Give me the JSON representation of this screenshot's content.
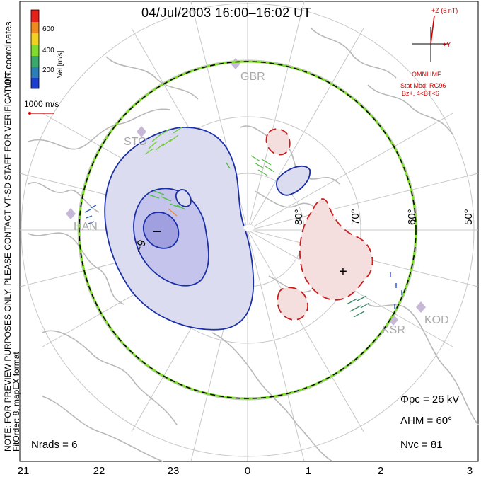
{
  "title": "04/Jul/2003 16:00–16:02 UT",
  "colorbar": {
    "label": "Vel [m/s]",
    "ticks": [
      "600",
      "400",
      "200"
    ],
    "colors": [
      "#e8201a",
      "#f08a1c",
      "#f2d21e",
      "#7fdc2a",
      "#3aa86a",
      "#2a7fb8",
      "#1a3fd0"
    ]
  },
  "coord_label": "MLT coordinates",
  "scale_vector": "1000 m/s",
  "imf": {
    "axis_z": "+Z (5 nT)",
    "axis_y": "+Y",
    "source": "OMNI IMF",
    "stat_mod": "Stat Mod: RG96",
    "condition": "Bz+, 4<BT<6"
  },
  "notice": "NOTE: FOR PREVIEW PURPOSES ONLY. PLEASE CONTACT VT-SD STAFF FOR VERIFICATION.",
  "fit_order": "FitOrder: 8, mapEX format",
  "stations": [
    "GBR",
    "STO",
    "HAN",
    "KOD",
    "KSR"
  ],
  "latitude_labels": [
    "80°",
    "70°",
    "60°",
    "50°"
  ],
  "mlt_labels": [
    "21",
    "22",
    "23",
    "0",
    "1",
    "2",
    "3"
  ],
  "contours": {
    "negative_label": "−9",
    "min_marker": "−",
    "max_marker": "+"
  },
  "stats": {
    "phi_pc": "Φpc = 26 kV",
    "lambda_hm": "ΛHM = 60°",
    "n_vc": "Nvc = 81",
    "n_rads": "Nrads = 6"
  },
  "colors": {
    "negative_fill": "#dcdcf0",
    "negative_line": "#1a2fa8",
    "positive_fill": "#f5dede",
    "positive_line": "#c81e1e",
    "coast": "#b8b8b8",
    "grid": "#c8c8c8"
  }
}
